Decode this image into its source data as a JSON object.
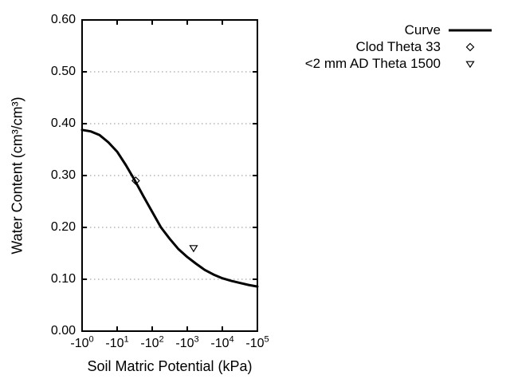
{
  "colors": {
    "background": "#ffffff",
    "frame": "#000000",
    "grid": "#909090",
    "series": "#000000"
  },
  "chart_data": {
    "type": "line",
    "title": "",
    "xlabel": "Soil Matric Potential (kPa)",
    "ylabel": "Water Content (cm³/cm³)",
    "x_scale": "logarithmic (negative kPa), decades 0 to 5",
    "xlim_log": [
      0,
      5
    ],
    "ylim": [
      0,
      0.6
    ],
    "grid": {
      "horizontal": "dotted",
      "vertical": "none"
    },
    "legend_position": "top-right outside plot",
    "x_ticks": [
      {
        "base": "-10",
        "exp": "0",
        "log": 0
      },
      {
        "base": "-10",
        "exp": "1",
        "log": 1
      },
      {
        "base": "-10",
        "exp": "2",
        "log": 2
      },
      {
        "base": "-10",
        "exp": "3",
        "log": 3
      },
      {
        "base": "-10",
        "exp": "4",
        "log": 4
      },
      {
        "base": "-10",
        "exp": "5",
        "log": 5
      }
    ],
    "y_ticks": [
      {
        "label": "0.00",
        "value": 0.0
      },
      {
        "label": "0.10",
        "value": 0.1
      },
      {
        "label": "0.20",
        "value": 0.2
      },
      {
        "label": "0.30",
        "value": 0.3
      },
      {
        "label": "0.40",
        "value": 0.4
      },
      {
        "label": "0.50",
        "value": 0.5
      },
      {
        "label": "0.60",
        "value": 0.6
      }
    ],
    "series": [
      {
        "name": "Curve",
        "kind": "line",
        "marker": "none",
        "color": "#000000",
        "points": [
          [
            0.0,
            0.388
          ],
          [
            0.25,
            0.385
          ],
          [
            0.5,
            0.378
          ],
          [
            0.75,
            0.364
          ],
          [
            1.0,
            0.346
          ],
          [
            1.25,
            0.32
          ],
          [
            1.5,
            0.291
          ],
          [
            1.75,
            0.26
          ],
          [
            2.0,
            0.23
          ],
          [
            2.25,
            0.2
          ],
          [
            2.5,
            0.178
          ],
          [
            2.75,
            0.158
          ],
          [
            3.0,
            0.143
          ],
          [
            3.25,
            0.13
          ],
          [
            3.5,
            0.118
          ],
          [
            3.75,
            0.109
          ],
          [
            4.0,
            0.102
          ],
          [
            4.25,
            0.097
          ],
          [
            4.5,
            0.093
          ],
          [
            4.75,
            0.089
          ],
          [
            5.0,
            0.086
          ]
        ]
      },
      {
        "name": "Clod Theta 33",
        "kind": "scatter",
        "marker": "diamond-open",
        "color": "#000000",
        "points": [
          [
            1.53,
            0.29
          ]
        ],
        "approx_kPa": -33
      },
      {
        "name": "<2 mm AD Theta 1500",
        "kind": "scatter",
        "marker": "triangle-down-open",
        "color": "#000000",
        "points": [
          [
            3.18,
            0.16
          ]
        ],
        "approx_kPa": -1500
      }
    ]
  }
}
